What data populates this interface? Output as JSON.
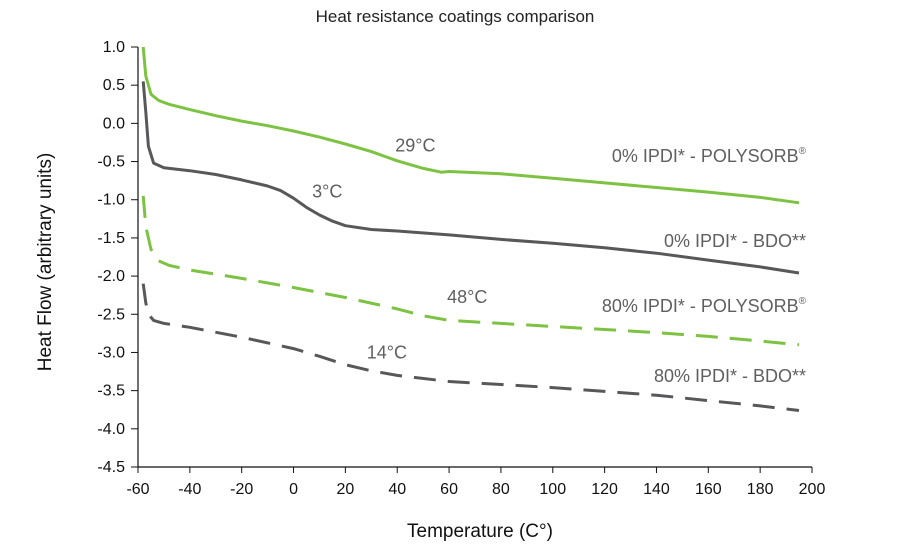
{
  "chart_data": {
    "type": "line",
    "title": "Heat resistance coatings comparison",
    "xlabel": "Temperature (C°)",
    "ylabel": "Heat Flow (arbitrary units)",
    "xlim": [
      -60,
      200
    ],
    "ylim": [
      -4.5,
      1.0
    ],
    "x_ticks": [
      "-60",
      "-40",
      "-20",
      "0",
      "20",
      "40",
      "60",
      "80",
      "100",
      "120",
      "140",
      "160",
      "180",
      "200"
    ],
    "y_ticks": [
      "1.0",
      "0.5",
      "0.0",
      "-0.5",
      "-1.0",
      "-1.5",
      "-2.0",
      "-2.5",
      "-3.0",
      "-3.5",
      "-4.0",
      "-4.5"
    ],
    "grid": false,
    "legend": "inline labels at right end of each series",
    "series": [
      {
        "name": "0% IPDI* - POLYSORB",
        "color": "#7dc242",
        "dash": "solid",
        "label_suffix": "®",
        "points": [
          [
            -58,
            1.0
          ],
          [
            -57,
            0.62
          ],
          [
            -55,
            0.38
          ],
          [
            -52,
            0.3
          ],
          [
            -48,
            0.25
          ],
          [
            -40,
            0.18
          ],
          [
            -30,
            0.1
          ],
          [
            -20,
            0.03
          ],
          [
            -10,
            -0.03
          ],
          [
            0,
            -0.1
          ],
          [
            10,
            -0.18
          ],
          [
            20,
            -0.27
          ],
          [
            30,
            -0.37
          ],
          [
            40,
            -0.49
          ],
          [
            50,
            -0.59
          ],
          [
            57,
            -0.64
          ],
          [
            60,
            -0.63
          ],
          [
            80,
            -0.66
          ],
          [
            100,
            -0.72
          ],
          [
            120,
            -0.78
          ],
          [
            140,
            -0.84
          ],
          [
            160,
            -0.9
          ],
          [
            180,
            -0.97
          ],
          [
            195,
            -1.04
          ]
        ]
      },
      {
        "name": "0% IPDI* - BDO**",
        "color": "#58585b",
        "dash": "solid",
        "label_suffix": "",
        "points": [
          [
            -58,
            0.55
          ],
          [
            -57,
            0.15
          ],
          [
            -56,
            -0.3
          ],
          [
            -54,
            -0.52
          ],
          [
            -50,
            -0.58
          ],
          [
            -45,
            -0.6
          ],
          [
            -40,
            -0.62
          ],
          [
            -30,
            -0.67
          ],
          [
            -20,
            -0.74
          ],
          [
            -10,
            -0.82
          ],
          [
            -5,
            -0.88
          ],
          [
            0,
            -0.98
          ],
          [
            5,
            -1.1
          ],
          [
            10,
            -1.2
          ],
          [
            15,
            -1.28
          ],
          [
            20,
            -1.34
          ],
          [
            30,
            -1.39
          ],
          [
            40,
            -1.41
          ],
          [
            60,
            -1.46
          ],
          [
            80,
            -1.52
          ],
          [
            100,
            -1.57
          ],
          [
            120,
            -1.63
          ],
          [
            140,
            -1.7
          ],
          [
            160,
            -1.79
          ],
          [
            180,
            -1.88
          ],
          [
            195,
            -1.96
          ]
        ]
      },
      {
        "name": "80% IPDI* - POLYSORB",
        "color": "#7dc242",
        "dash": "dashed",
        "label_suffix": "®",
        "points": [
          [
            -58,
            -0.95
          ],
          [
            -57,
            -1.35
          ],
          [
            -55,
            -1.65
          ],
          [
            -52,
            -1.8
          ],
          [
            -48,
            -1.86
          ],
          [
            -40,
            -1.92
          ],
          [
            -20,
            -2.03
          ],
          [
            0,
            -2.15
          ],
          [
            20,
            -2.28
          ],
          [
            40,
            -2.43
          ],
          [
            50,
            -2.52
          ],
          [
            60,
            -2.58
          ],
          [
            80,
            -2.62
          ],
          [
            100,
            -2.66
          ],
          [
            120,
            -2.7
          ],
          [
            140,
            -2.74
          ],
          [
            160,
            -2.79
          ],
          [
            180,
            -2.85
          ],
          [
            195,
            -2.9
          ]
        ]
      },
      {
        "name": "80% IPDI* - BDO**",
        "color": "#58585b",
        "dash": "dashed",
        "label_suffix": "",
        "points": [
          [
            -58,
            -2.1
          ],
          [
            -57,
            -2.35
          ],
          [
            -56,
            -2.5
          ],
          [
            -54,
            -2.58
          ],
          [
            -50,
            -2.62
          ],
          [
            -40,
            -2.67
          ],
          [
            -20,
            -2.8
          ],
          [
            0,
            -2.95
          ],
          [
            10,
            -3.05
          ],
          [
            20,
            -3.16
          ],
          [
            30,
            -3.24
          ],
          [
            40,
            -3.3
          ],
          [
            60,
            -3.38
          ],
          [
            80,
            -3.42
          ],
          [
            100,
            -3.46
          ],
          [
            120,
            -3.51
          ],
          [
            140,
            -3.56
          ],
          [
            160,
            -3.63
          ],
          [
            180,
            -3.7
          ],
          [
            195,
            -3.76
          ]
        ]
      }
    ],
    "annotations": [
      {
        "text": "29°C",
        "x": 47,
        "y": -0.37
      },
      {
        "text": "3°C",
        "x": 13,
        "y": -0.97
      },
      {
        "text": "48°C",
        "x": 67,
        "y": -2.35
      },
      {
        "text": "14°C",
        "x": 36,
        "y": -3.08
      }
    ]
  }
}
